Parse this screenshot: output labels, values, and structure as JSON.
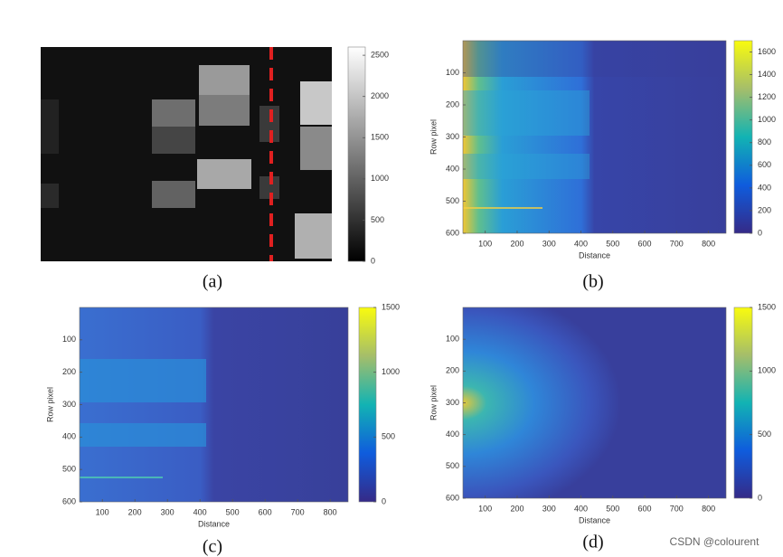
{
  "panels": [
    {
      "caption": "(a)",
      "clim": [
        0,
        2600
      ],
      "cticks": [
        0,
        500,
        1000,
        1500,
        2000,
        2500
      ]
    },
    {
      "caption": "(b)",
      "clim": [
        0,
        1700
      ],
      "cticks": [
        0,
        200,
        400,
        600,
        800,
        1000,
        1200,
        1400,
        1600
      ],
      "xlabel": "Distance",
      "ylabel": "Row pixel",
      "xlim": [
        30,
        855
      ],
      "ylim": [
        0,
        600
      ],
      "xticks": [
        100,
        200,
        300,
        400,
        500,
        600,
        700,
        800
      ],
      "yticks": [
        100,
        200,
        300,
        400,
        500,
        600
      ]
    },
    {
      "caption": "(c)",
      "clim": [
        0,
        1500
      ],
      "cticks": [
        0,
        500,
        1000,
        1500
      ],
      "xlabel": "Distance",
      "ylabel": "Row pixel",
      "xlim": [
        30,
        855
      ],
      "ylim": [
        0,
        600
      ],
      "xticks": [
        100,
        200,
        300,
        400,
        500,
        600,
        700,
        800
      ],
      "yticks": [
        100,
        200,
        300,
        400,
        500,
        600
      ]
    },
    {
      "caption": "(d)",
      "clim": [
        0,
        1500
      ],
      "cticks": [
        0,
        500,
        1000,
        1500
      ],
      "xlabel": "Distance",
      "ylabel": "Row pixel",
      "xlim": [
        30,
        855
      ],
      "ylim": [
        0,
        600
      ],
      "xticks": [
        100,
        200,
        300,
        400,
        500,
        600,
        700,
        800
      ],
      "yticks": [
        100,
        200,
        300,
        400,
        500,
        600
      ]
    }
  ],
  "watermark": "CSDN @colourent"
}
